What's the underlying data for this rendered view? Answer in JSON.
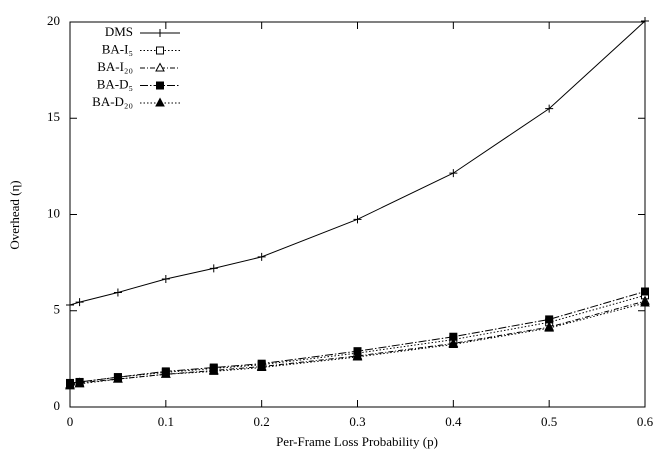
{
  "chart_data": {
    "type": "line",
    "x_label": "Per-Frame Loss Probability (p)",
    "y_label": "Overhead (η)",
    "x": [
      0,
      0.01,
      0.05,
      0.1,
      0.15,
      0.2,
      0.3,
      0.4,
      0.5,
      0.6
    ],
    "xlim": [
      0,
      0.6
    ],
    "xticks": [
      0,
      0.1,
      0.2,
      0.3,
      0.4,
      0.5,
      0.6
    ],
    "ylim": [
      0,
      20
    ],
    "yticks": [
      0,
      5,
      10,
      15,
      20
    ],
    "grid": false,
    "legend": "top-left",
    "series": [
      {
        "name": "DMS",
        "color": "#000000",
        "marker": "plus",
        "line_style": "solid",
        "values": [
          5.3,
          5.45,
          5.95,
          6.65,
          7.2,
          7.8,
          9.75,
          12.15,
          15.5,
          20.05
        ]
      },
      {
        "name": "BA-I₅",
        "color": "#000000",
        "marker": "square-open",
        "line_style": "dotted",
        "values": [
          1.2,
          1.3,
          1.55,
          1.8,
          2.0,
          2.2,
          2.8,
          3.5,
          4.4,
          5.8
        ]
      },
      {
        "name": "BA-I₂₀",
        "color": "#000000",
        "marker": "triangle-open",
        "line_style": "dash-dot",
        "values": [
          1.15,
          1.25,
          1.45,
          1.7,
          1.9,
          2.1,
          2.65,
          3.3,
          4.15,
          5.5
        ]
      },
      {
        "name": "BA-D₅",
        "color": "#000000",
        "marker": "square-filled",
        "line_style": "long-dash-dot",
        "values": [
          1.25,
          1.3,
          1.55,
          1.85,
          2.05,
          2.25,
          2.9,
          3.65,
          4.55,
          6.0
        ]
      },
      {
        "name": "BA-D₂₀",
        "color": "#000000",
        "marker": "triangle-filled",
        "line_style": "dotted",
        "values": [
          1.1,
          1.2,
          1.45,
          1.7,
          1.85,
          2.05,
          2.6,
          3.25,
          4.1,
          5.4
        ]
      }
    ]
  }
}
